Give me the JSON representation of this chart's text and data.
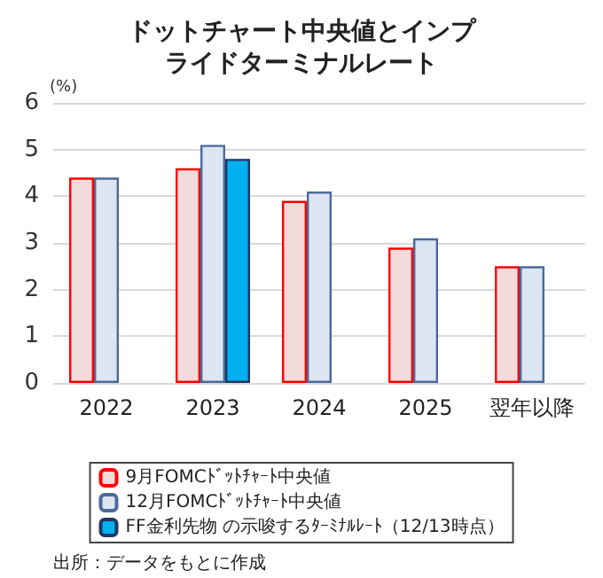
{
  "chart_data": {
    "type": "bar",
    "title": "ドットチャート中央値とインプライドターミナルレート",
    "ylabel": "(%)",
    "categories": [
      "2022",
      "2023",
      "2024",
      "2025",
      "翌年以降"
    ],
    "series": [
      {
        "name": "9月FOMCﾄﾞｯﾄﾁｬｰﾄ中央値",
        "color": "#f2dcdb",
        "values": [
          4.4,
          4.6,
          3.9,
          2.9,
          2.5
        ]
      },
      {
        "name": "12月FOMCﾄﾞｯﾄﾁｬｰﾄ中央値",
        "color": "#dce6f2",
        "values": [
          4.4,
          5.1,
          4.1,
          3.1,
          2.5
        ]
      },
      {
        "name": "FF金利先物 の示唆するﾀｰﾐﾅﾙﾚｰﾄ（12/13時点）",
        "color": "#00b0f0",
        "values": [
          null,
          4.8,
          null,
          null,
          null
        ]
      }
    ],
    "ylim": [
      0,
      6
    ],
    "yticks": [
      0,
      1,
      2,
      3,
      4,
      5,
      6
    ],
    "grid": "y",
    "legend": "bottom",
    "annotations": [
      "出所：データをもとに作成"
    ]
  }
}
